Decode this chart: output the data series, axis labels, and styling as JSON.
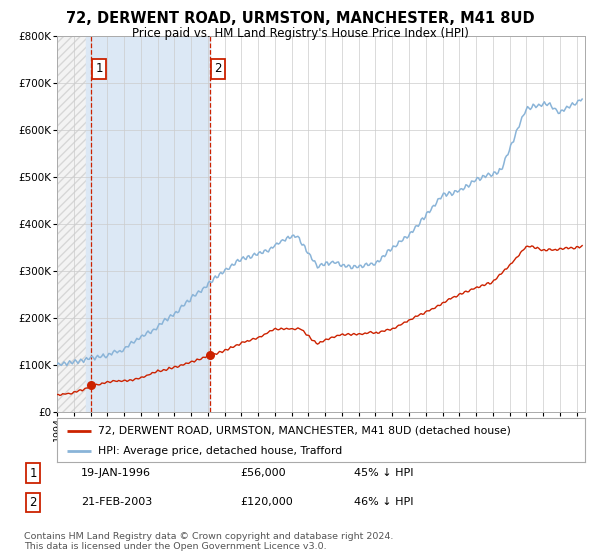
{
  "title": "72, DERWENT ROAD, URMSTON, MANCHESTER, M41 8UD",
  "subtitle": "Price paid vs. HM Land Registry's House Price Index (HPI)",
  "ylim": [
    0,
    800000
  ],
  "yticks": [
    0,
    100000,
    200000,
    300000,
    400000,
    500000,
    600000,
    700000,
    800000
  ],
  "ytick_labels": [
    "£0",
    "£100K",
    "£200K",
    "£300K",
    "£400K",
    "£500K",
    "£600K",
    "£700K",
    "£800K"
  ],
  "xlim_start": 1994.0,
  "xlim_end": 2025.5,
  "sale1_date": 1996.05,
  "sale1_price": 56000,
  "sale2_date": 2003.13,
  "sale2_price": 120000,
  "hpi_color": "#8ab4d8",
  "price_color": "#cc2200",
  "shade_color": "#dce8f5",
  "legend_label_price": "72, DERWENT ROAD, URMSTON, MANCHESTER, M41 8UD (detached house)",
  "legend_label_hpi": "HPI: Average price, detached house, Trafford",
  "table_row1": [
    "1",
    "19-JAN-1996",
    "£56,000",
    "45% ↓ HPI"
  ],
  "table_row2": [
    "2",
    "21-FEB-2003",
    "£120,000",
    "46% ↓ HPI"
  ],
  "footnote": "Contains HM Land Registry data © Crown copyright and database right 2024.\nThis data is licensed under the Open Government Licence v3.0.",
  "background_color": "#ffffff",
  "grid_color": "#cccccc"
}
